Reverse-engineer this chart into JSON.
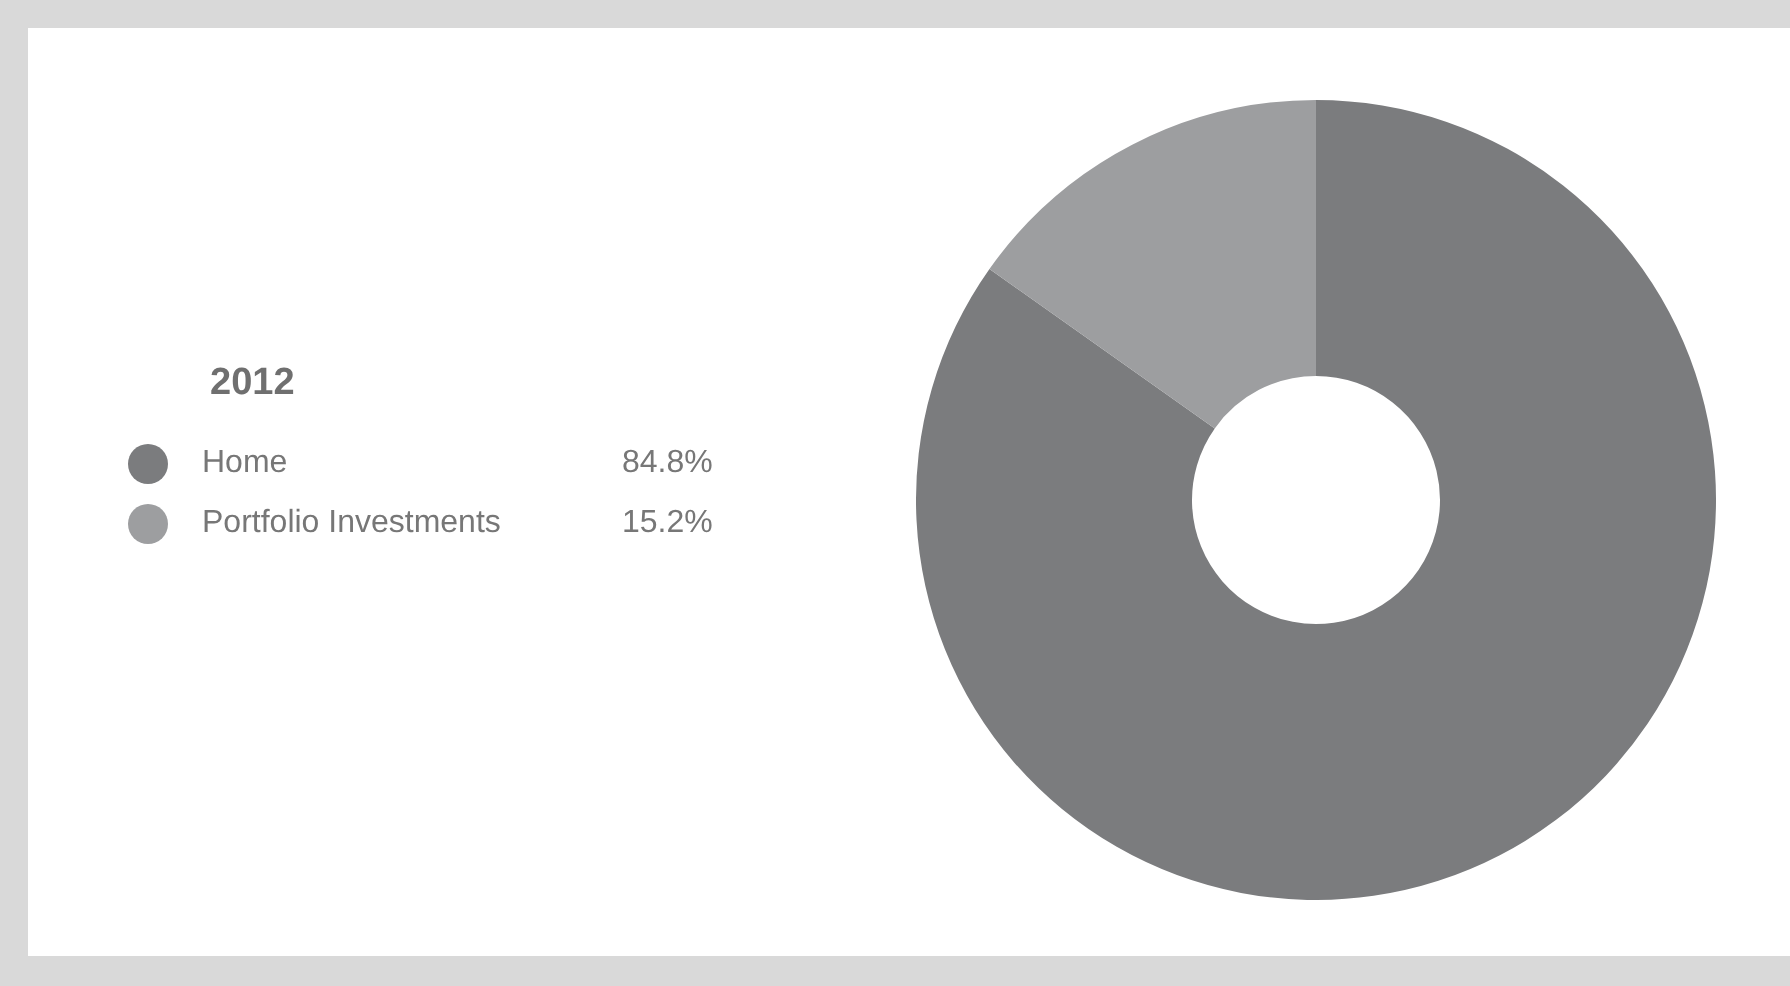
{
  "chart_data": {
    "type": "donut",
    "legend_title": "2012",
    "legend": "left",
    "categories": [
      "Home",
      "Portfolio Investments"
    ],
    "values": [
      84.8,
      15.2
    ],
    "colors": [
      "#7b7c7e",
      "#9d9ea0"
    ],
    "value_labels": [
      "84.8%",
      "15.2%"
    ]
  }
}
